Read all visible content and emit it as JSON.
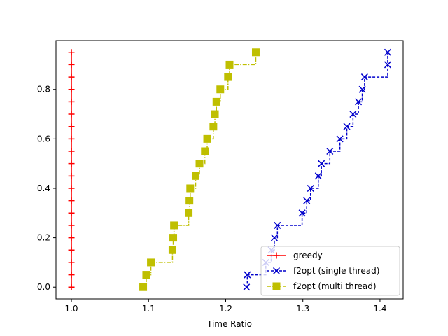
{
  "chart_data": {
    "type": "line",
    "title": "",
    "xlabel": "Time Ratio",
    "ylabel": "",
    "xlim": [
      0.98,
      1.43
    ],
    "ylim": [
      -0.0475,
      0.9975
    ],
    "x_ticks": [
      1.0,
      1.1,
      1.2,
      1.3,
      1.4
    ],
    "x_tick_labels": [
      "1.0",
      "1.1",
      "1.2",
      "1.3",
      "1.4"
    ],
    "y_ticks": [
      0.0,
      0.2,
      0.4,
      0.6,
      0.8
    ],
    "y_tick_labels": [
      "0.0",
      "0.2",
      "0.4",
      "0.6",
      "0.8"
    ],
    "grid": false,
    "legend_position": "lower-right",
    "series": [
      {
        "name": "greedy",
        "color": "#ff0000",
        "marker": "plus",
        "linestyle": "solid",
        "drawstyle": "steps-post",
        "x": [
          1.0,
          1.0,
          1.0,
          1.0,
          1.0,
          1.0,
          1.0,
          1.0,
          1.0,
          1.0,
          1.0,
          1.0,
          1.0,
          1.0,
          1.0,
          1.0,
          1.0,
          1.0,
          1.0,
          1.0
        ],
        "y": [
          0.0,
          0.05,
          0.1,
          0.15,
          0.2,
          0.25,
          0.3,
          0.35,
          0.4,
          0.45,
          0.5,
          0.55,
          0.6,
          0.65,
          0.7,
          0.75,
          0.8,
          0.85,
          0.9,
          0.95
        ]
      },
      {
        "name": "f2opt (single thread)",
        "color": "#0000cc",
        "marker": "x",
        "linestyle": "dashed",
        "drawstyle": "steps-post",
        "x": [
          1.227,
          1.228,
          1.252,
          1.259,
          1.263,
          1.267,
          1.299,
          1.305,
          1.31,
          1.32,
          1.324,
          1.335,
          1.348,
          1.357,
          1.365,
          1.372,
          1.377,
          1.38,
          1.41,
          1.41
        ],
        "y": [
          0.0,
          0.05,
          0.1,
          0.15,
          0.2,
          0.25,
          0.3,
          0.35,
          0.4,
          0.45,
          0.5,
          0.55,
          0.6,
          0.65,
          0.7,
          0.75,
          0.8,
          0.85,
          0.9,
          0.95
        ]
      },
      {
        "name": "f2opt (multi thread)",
        "color": "#bfbf00",
        "marker": "square",
        "linestyle": "dashdot",
        "drawstyle": "steps-post",
        "x": [
          1.093,
          1.097,
          1.103,
          1.131,
          1.132,
          1.133,
          1.152,
          1.153,
          1.154,
          1.161,
          1.166,
          1.173,
          1.176,
          1.184,
          1.186,
          1.188,
          1.193,
          1.203,
          1.205,
          1.239
        ],
        "y": [
          0.0,
          0.05,
          0.1,
          0.15,
          0.2,
          0.25,
          0.3,
          0.35,
          0.4,
          0.45,
          0.5,
          0.55,
          0.6,
          0.65,
          0.7,
          0.75,
          0.8,
          0.85,
          0.9,
          0.95
        ]
      }
    ]
  }
}
